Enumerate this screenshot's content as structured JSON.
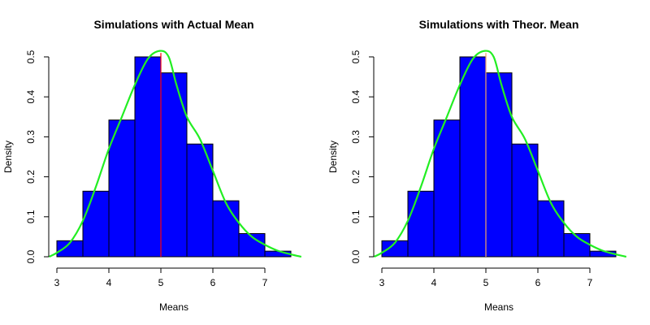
{
  "chart_data": [
    {
      "type": "bar",
      "title": "Simulations with Actual Mean",
      "xlabel": "Means",
      "ylabel": "Density",
      "xlim": [
        3,
        7.5
      ],
      "ylim": [
        0,
        0.5
      ],
      "x_ticks": [
        "3",
        "4",
        "5",
        "6",
        "7"
      ],
      "y_ticks": [
        "0.0",
        "0.1",
        "0.2",
        "0.3",
        "0.4",
        "0.5"
      ],
      "bins": [
        {
          "start": 3.0,
          "end": 3.5,
          "density": 0.04
        },
        {
          "start": 3.5,
          "end": 4.0,
          "density": 0.164
        },
        {
          "start": 4.0,
          "end": 4.5,
          "density": 0.342
        },
        {
          "start": 4.5,
          "end": 5.0,
          "density": 0.5
        },
        {
          "start": 5.0,
          "end": 5.5,
          "density": 0.46
        },
        {
          "start": 5.5,
          "end": 6.0,
          "density": 0.282
        },
        {
          "start": 6.0,
          "end": 6.5,
          "density": 0.14
        },
        {
          "start": 6.5,
          "end": 7.0,
          "density": 0.058
        },
        {
          "start": 7.0,
          "end": 7.5,
          "density": 0.014
        }
      ],
      "density_curve": {
        "x": [
          2.85,
          3.0,
          3.25,
          3.5,
          3.75,
          4.0,
          4.25,
          4.5,
          4.75,
          4.98,
          5.15,
          5.3,
          5.5,
          5.75,
          6.0,
          6.25,
          6.5,
          6.75,
          7.0,
          7.25,
          7.5,
          7.7
        ],
        "y": [
          0.0,
          0.01,
          0.035,
          0.09,
          0.175,
          0.27,
          0.35,
          0.43,
          0.495,
          0.515,
          0.5,
          0.43,
          0.35,
          0.295,
          0.215,
          0.135,
          0.085,
          0.05,
          0.03,
          0.015,
          0.006,
          0.0
        ]
      },
      "vline": 5.0,
      "colors": {
        "bars": "#0000ff",
        "bar_border": "#000000",
        "curve": "#22ee22",
        "vline": "#ff0000"
      }
    },
    {
      "type": "bar",
      "title": "Simulations with Theor. Mean",
      "xlabel": "Means",
      "ylabel": "Density",
      "xlim": [
        3,
        7.5
      ],
      "ylim": [
        0,
        0.5
      ],
      "x_ticks": [
        "3",
        "4",
        "5",
        "6",
        "7"
      ],
      "y_ticks": [
        "0.0",
        "0.1",
        "0.2",
        "0.3",
        "0.4",
        "0.5"
      ],
      "bins": [
        {
          "start": 3.0,
          "end": 3.5,
          "density": 0.04
        },
        {
          "start": 3.5,
          "end": 4.0,
          "density": 0.164
        },
        {
          "start": 4.0,
          "end": 4.5,
          "density": 0.342
        },
        {
          "start": 4.5,
          "end": 5.0,
          "density": 0.5
        },
        {
          "start": 5.0,
          "end": 5.5,
          "density": 0.46
        },
        {
          "start": 5.5,
          "end": 6.0,
          "density": 0.282
        },
        {
          "start": 6.0,
          "end": 6.5,
          "density": 0.14
        },
        {
          "start": 6.5,
          "end": 7.0,
          "density": 0.058
        },
        {
          "start": 7.0,
          "end": 7.5,
          "density": 0.014
        }
      ],
      "density_curve": {
        "x": [
          2.85,
          3.0,
          3.25,
          3.5,
          3.75,
          4.0,
          4.25,
          4.5,
          4.75,
          4.98,
          5.15,
          5.3,
          5.5,
          5.75,
          6.0,
          6.25,
          6.5,
          6.75,
          7.0,
          7.25,
          7.5,
          7.7
        ],
        "y": [
          0.0,
          0.01,
          0.035,
          0.09,
          0.175,
          0.27,
          0.35,
          0.43,
          0.495,
          0.515,
          0.5,
          0.43,
          0.35,
          0.295,
          0.215,
          0.135,
          0.085,
          0.05,
          0.03,
          0.015,
          0.006,
          0.0
        ]
      },
      "vline": 5.0,
      "colors": {
        "bars": "#0000ff",
        "bar_border": "#000000",
        "curve": "#22ee22",
        "vline": "#f4a460"
      }
    }
  ]
}
